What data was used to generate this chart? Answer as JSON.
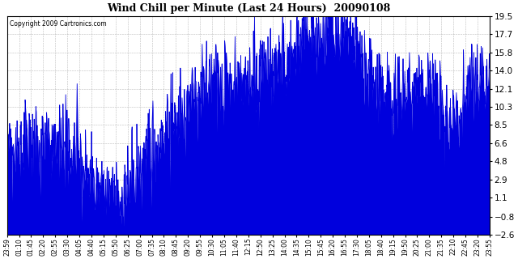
{
  "title": "Wind Chill per Minute (Last 24 Hours)  20090108",
  "copyright": "Copyright 2009 Cartronics.com",
  "line_color": "#0000dd",
  "background_color": "#ffffff",
  "plot_bg_color": "#ffffff",
  "grid_color": "#aaaaaa",
  "ylim": [
    -2.6,
    19.5
  ],
  "yticks": [
    -2.6,
    -0.8,
    1.1,
    2.9,
    4.8,
    6.6,
    8.5,
    10.3,
    12.1,
    14.0,
    15.8,
    17.7,
    19.5
  ],
  "xtick_labels": [
    "23:59",
    "01:10",
    "01:45",
    "02:20",
    "02:55",
    "03:30",
    "04:05",
    "04:40",
    "05:15",
    "05:50",
    "06:25",
    "07:00",
    "07:35",
    "08:10",
    "08:45",
    "09:20",
    "09:55",
    "10:30",
    "11:05",
    "11:40",
    "12:15",
    "12:50",
    "13:25",
    "14:00",
    "14:35",
    "15:10",
    "15:45",
    "16:20",
    "16:55",
    "17:30",
    "18:05",
    "18:40",
    "19:15",
    "19:50",
    "20:25",
    "21:00",
    "21:35",
    "22:10",
    "22:45",
    "23:20",
    "23:55"
  ],
  "num_points": 1440,
  "seed": 42
}
